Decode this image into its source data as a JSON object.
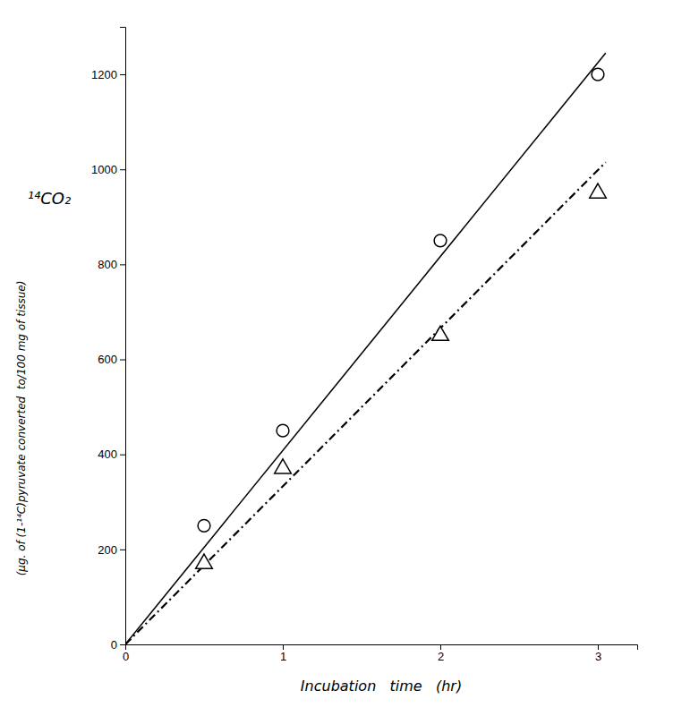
{
  "chart_data": {
    "type": "scatter",
    "xlabel": "Incubation   time   (hr)",
    "ylabel": "¹⁴CO₂",
    "ylabel_sub": "(μg. of (1-¹⁴C)pyruvate converted  to/100 mg of tissue)",
    "series": [
      {
        "type": "line",
        "x": [
          0,
          3.05
        ],
        "values": [
          0,
          1245
        ],
        "color": "#000000",
        "line_style": "solid"
      },
      {
        "type": "line",
        "x": [
          0,
          3.05
        ],
        "values": [
          0,
          1015
        ],
        "color": "#000000",
        "line_style": "dashdot"
      },
      {
        "type": "scatter",
        "x": [
          0.5,
          1.0,
          2.0,
          3.0
        ],
        "values": [
          250,
          450,
          850,
          1200
        ],
        "color": "#000000",
        "marker": "circle"
      },
      {
        "type": "scatter",
        "x": [
          0.5,
          1.0,
          2.0,
          3.0
        ],
        "values": [
          170,
          370,
          650,
          950
        ],
        "color": "#000000",
        "marker": "triangle"
      }
    ],
    "xlim": [
      0,
      3.25
    ],
    "ylim": [
      0,
      1300
    ],
    "xticks": [
      0,
      1,
      2,
      3
    ],
    "yticks": [
      0,
      200,
      400,
      600,
      800,
      1000,
      1200
    ],
    "grid": false
  }
}
